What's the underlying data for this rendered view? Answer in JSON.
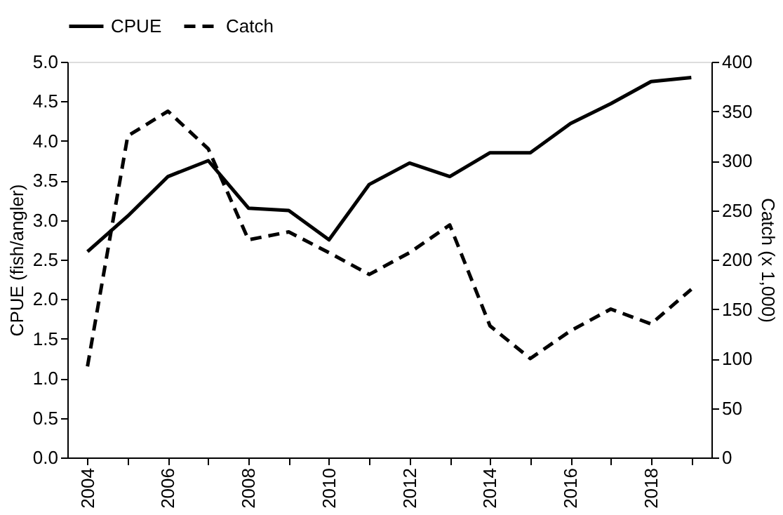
{
  "chart_data": {
    "type": "line",
    "x": [
      2004,
      2005,
      2006,
      2007,
      2008,
      2009,
      2010,
      2011,
      2012,
      2013,
      2014,
      2015,
      2016,
      2017,
      2018,
      2019
    ],
    "series": [
      {
        "name": "CPUE",
        "color": "#000000",
        "line_style": "solid",
        "values": [
          2.6,
          3.05,
          3.55,
          3.75,
          3.15,
          3.12,
          2.75,
          3.45,
          3.72,
          3.55,
          3.85,
          3.85,
          4.22,
          4.47,
          4.75,
          4.8
        ]
      },
      {
        "name": "Catch",
        "color": "#000000",
        "line_style": "dashed",
        "axis": "y2",
        "values": [
          92,
          325,
          350,
          312,
          220,
          228,
          207,
          185,
          207,
          235,
          133,
          100,
          128,
          150,
          135,
          170
        ]
      }
    ],
    "ylabel": "CPUE (fish/angler)",
    "y2label": "Catch (x 1,000)",
    "xlim": [
      2003.5,
      2019.5
    ],
    "xticks": [
      2004,
      {
        "value": 2005,
        "label": null
      },
      2006,
      {
        "value": 2007,
        "label": null
      },
      2008,
      {
        "value": 2009,
        "label": null
      },
      2010,
      {
        "value": 2011,
        "label": null
      },
      2012,
      {
        "value": 2013,
        "label": null
      },
      2014,
      {
        "value": 2015,
        "label": null
      },
      2016,
      {
        "value": 2017,
        "label": null
      },
      2018,
      {
        "value": 2019,
        "label": null
      }
    ],
    "ylim": [
      0,
      5
    ],
    "yticks": [
      {
        "value": 0,
        "label": "0.0"
      },
      0.5,
      {
        "value": 1,
        "label": "1.0"
      },
      1.5,
      {
        "value": 2,
        "label": "2.0"
      },
      2.5,
      {
        "value": 3,
        "label": "3.0"
      },
      3.5,
      {
        "value": 4,
        "label": "4.0"
      },
      4.5,
      {
        "value": 5,
        "label": "5.0"
      }
    ],
    "y2lim": [
      0,
      400
    ],
    "y2ticks": [
      0,
      50,
      100,
      150,
      200,
      250,
      300,
      350,
      400
    ],
    "grid": false,
    "legend": "top",
    "marker": "none"
  }
}
